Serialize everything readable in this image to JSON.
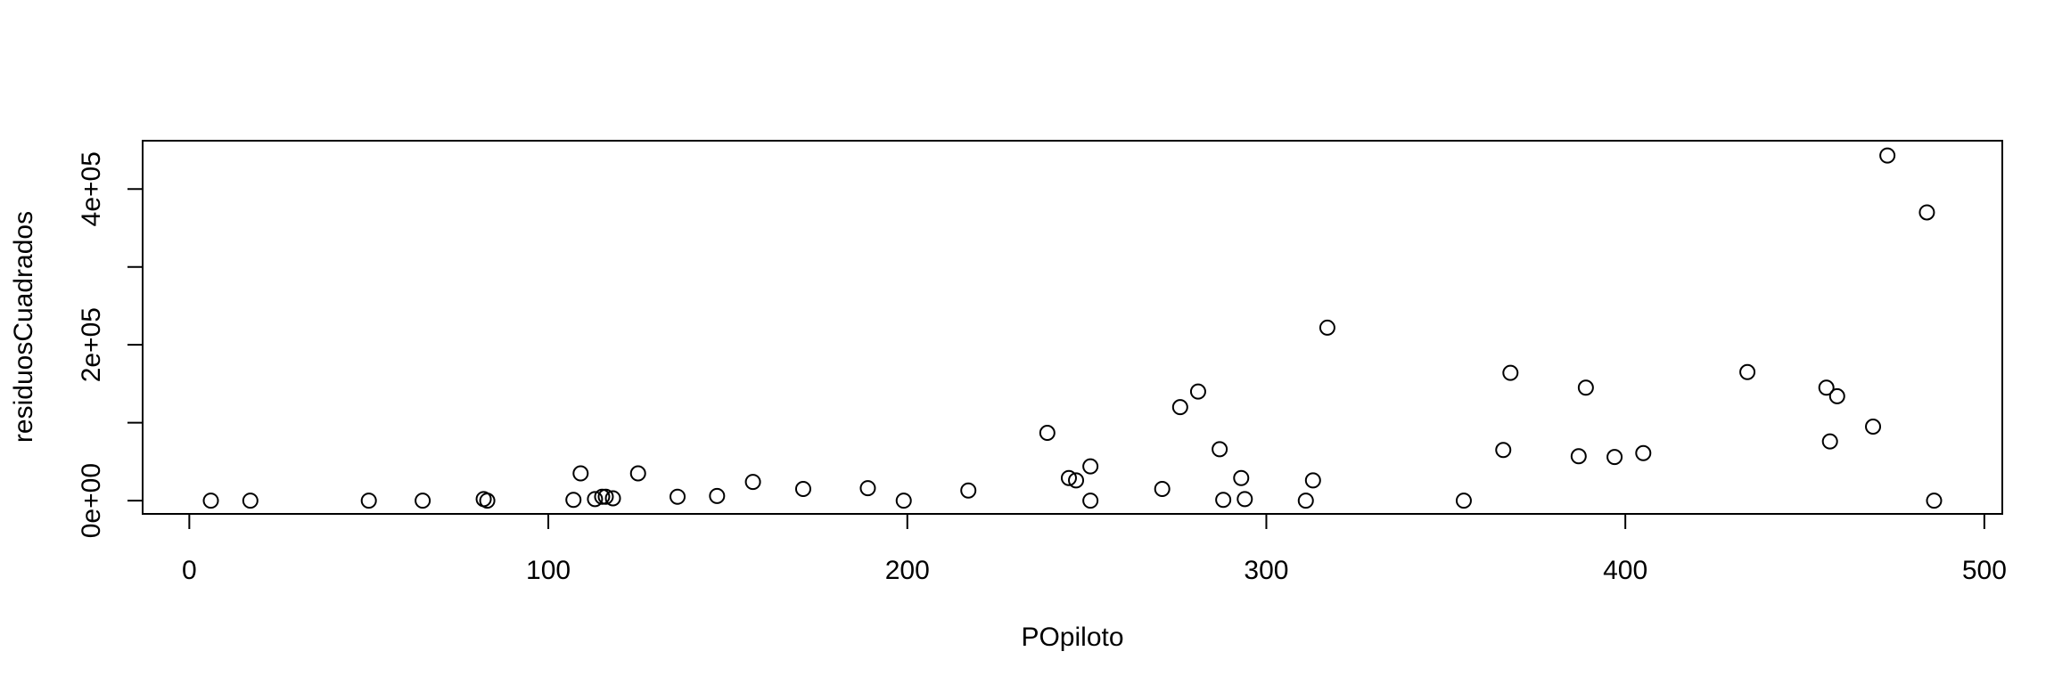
{
  "chart_data": {
    "type": "scatter",
    "title": "",
    "xlabel": "POpiloto",
    "ylabel": "residuosCuadrados",
    "xlim": [
      -13,
      505
    ],
    "ylim": [
      -17000,
      462000
    ],
    "x_ticks": [
      0,
      100,
      200,
      300,
      400,
      500
    ],
    "x_tick_labels": [
      "0",
      "100",
      "200",
      "300",
      "400",
      "500"
    ],
    "y_ticks": [
      0,
      100000,
      200000,
      300000,
      400000
    ],
    "y_tick_labels": [
      "0e+00",
      "",
      "2e+05",
      "",
      "4e+05"
    ],
    "grid": false,
    "legend": "none",
    "series": [
      {
        "points": [
          [
            6,
            0
          ],
          [
            17,
            0
          ],
          [
            50,
            0
          ],
          [
            65,
            0
          ],
          [
            82,
            2000
          ],
          [
            83,
            0
          ],
          [
            107,
            1000
          ],
          [
            109,
            35000
          ],
          [
            113,
            2000
          ],
          [
            115,
            5000
          ],
          [
            116,
            5000
          ],
          [
            118,
            3000
          ],
          [
            125,
            35000
          ],
          [
            136,
            5000
          ],
          [
            147,
            6000
          ],
          [
            157,
            24000
          ],
          [
            171,
            15000
          ],
          [
            189,
            16000
          ],
          [
            199,
            0
          ],
          [
            217,
            13000
          ],
          [
            239,
            87000
          ],
          [
            245,
            29000
          ],
          [
            247,
            26000
          ],
          [
            251,
            44000
          ],
          [
            251,
            0
          ],
          [
            271,
            15000
          ],
          [
            276,
            120000
          ],
          [
            281,
            140000
          ],
          [
            287,
            66000
          ],
          [
            288,
            1000
          ],
          [
            293,
            29000
          ],
          [
            294,
            2000
          ],
          [
            311,
            0
          ],
          [
            313,
            26000
          ],
          [
            317,
            222000
          ],
          [
            355,
            0
          ],
          [
            366,
            65000
          ],
          [
            368,
            164000
          ],
          [
            387,
            57000
          ],
          [
            389,
            145000
          ],
          [
            397,
            56000
          ],
          [
            405,
            61000
          ],
          [
            434,
            165000
          ],
          [
            456,
            145000
          ],
          [
            457,
            76000
          ],
          [
            459,
            134000
          ],
          [
            469,
            95000
          ],
          [
            473,
            443000
          ],
          [
            484,
            370000
          ],
          [
            486,
            0
          ]
        ]
      }
    ]
  }
}
